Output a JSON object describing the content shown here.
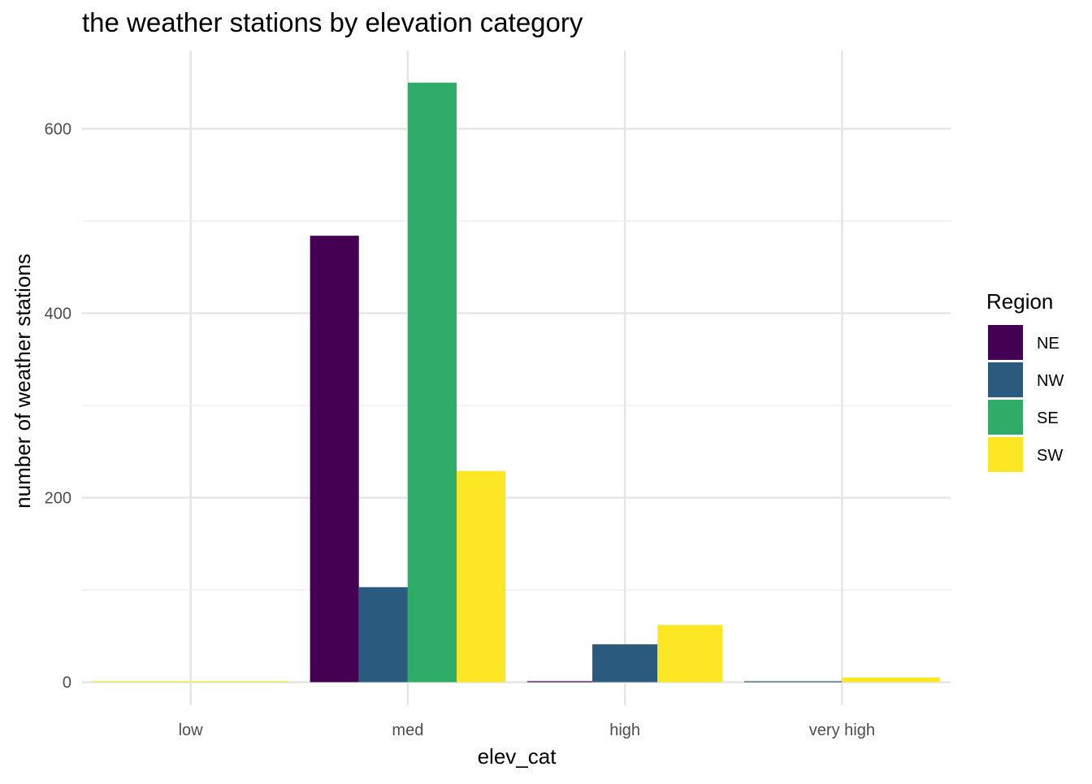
{
  "chart_data": {
    "type": "bar",
    "title": "the weather stations by elevation category",
    "xlabel": "elev_cat",
    "ylabel": "number of weather stations",
    "categories": [
      "low",
      "med",
      "high",
      "very high"
    ],
    "ylim": [
      -25,
      685
    ],
    "yticks": [
      0,
      200,
      400,
      600
    ],
    "grid": true,
    "legend": {
      "title": "Region",
      "position": "right"
    },
    "series": [
      {
        "name": "NE",
        "color": "#440154",
        "values": [
          0,
          484,
          1,
          0
        ]
      },
      {
        "name": "NW",
        "color": "#2A5A7E",
        "values": [
          0,
          103,
          41,
          1
        ]
      },
      {
        "name": "SE",
        "color": "#2FAC68",
        "values": [
          0,
          650,
          0,
          0
        ]
      },
      {
        "name": "SW",
        "color": "#FDE725",
        "values": [
          1,
          229,
          62,
          5
        ]
      }
    ]
  }
}
